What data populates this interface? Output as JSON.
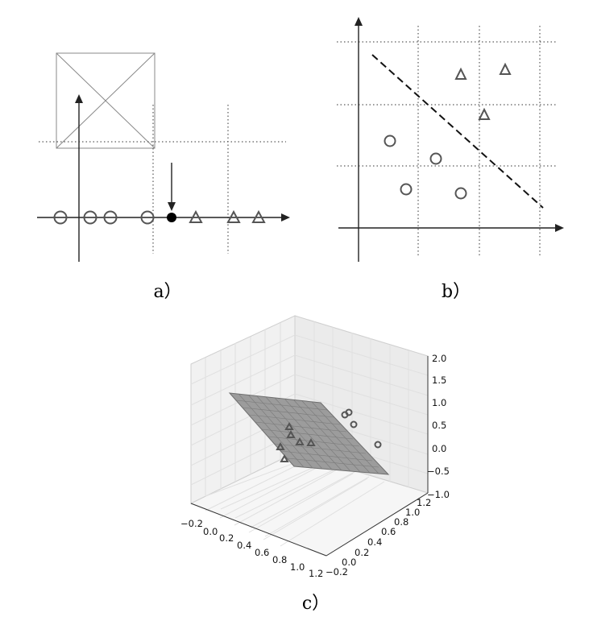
{
  "captions": {
    "a": "a）",
    "b": "b）",
    "c": "c）"
  },
  "panel_a": {
    "circles": 5,
    "highlight": "filled-dot",
    "triangles": 3
  },
  "panel_b": {
    "circles": 4,
    "triangles": 3,
    "separator": "dashed-line"
  },
  "panel_c": {
    "z_ticks": [
      "2.0",
      "1.5",
      "1.0",
      "0.5",
      "0.0",
      "−0.5",
      "−1.0"
    ],
    "x_ticks": [
      "−0.2",
      "0.0",
      "0.2",
      "0.4",
      "0.6",
      "0.8",
      "1.0",
      "1.2"
    ],
    "y_ticks": [
      "0.0",
      "0.2",
      "0.4",
      "0.6",
      "0.8",
      "1.0",
      "1.2",
      "−0.2"
    ],
    "plane_color": "#9a9a9a"
  }
}
